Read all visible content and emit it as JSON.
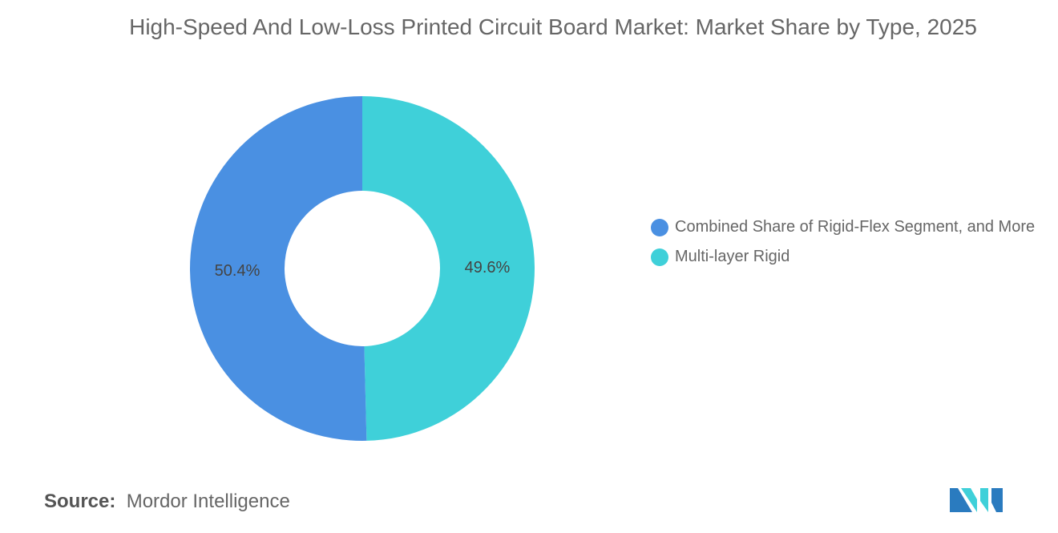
{
  "chart_data": {
    "type": "pie",
    "donut": true,
    "title": "High-Speed And Low-Loss Printed Circuit Board Market: Market Share by Type, 2025",
    "slices": [
      {
        "name": "Multi-layer Rigid",
        "value": 49.6,
        "label": "49.6%",
        "color": "#3FD0D9"
      },
      {
        "name": "Combined Share of Rigid-Flex Segment, and More",
        "value": 50.4,
        "label": "50.4%",
        "color": "#4A90E2"
      }
    ],
    "legend": {
      "placement": "right",
      "entries": [
        "Combined Share of Rigid-Flex Segment, and More",
        "Multi-layer Rigid"
      ]
    }
  },
  "source": {
    "label": "Source:",
    "value": "Mordor Intelligence"
  },
  "colors": {
    "blue": "#4A90E2",
    "cyan": "#3FD0D9"
  }
}
